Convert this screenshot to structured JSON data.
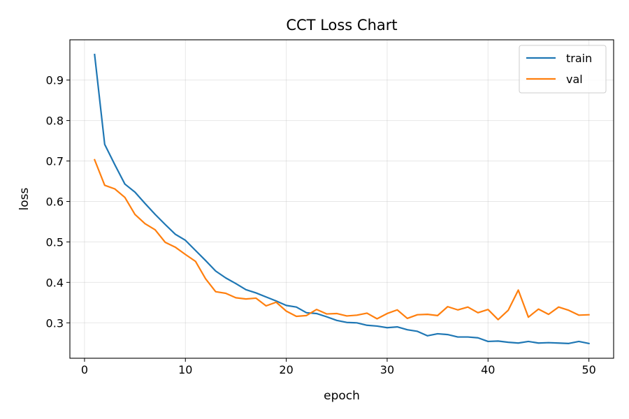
{
  "chart_data": {
    "type": "line",
    "title": "CCT Loss Chart",
    "xlabel": "epoch",
    "ylabel": "loss",
    "xlim": [
      -1.45,
      52.45
    ],
    "ylim": [
      0.2125,
      0.9995
    ],
    "xticks": [
      0,
      10,
      20,
      30,
      40,
      50
    ],
    "yticks": [
      0.3,
      0.4,
      0.5,
      0.6,
      0.7,
      0.8,
      0.9
    ],
    "xtick_labels": [
      "0",
      "10",
      "20",
      "30",
      "40",
      "50"
    ],
    "ytick_labels": [
      "0.3",
      "0.4",
      "0.5",
      "0.6",
      "0.7",
      "0.8",
      "0.9"
    ],
    "grid": true,
    "legend_position": "top-right",
    "x": [
      1,
      2,
      3,
      4,
      5,
      6,
      7,
      8,
      9,
      10,
      11,
      12,
      13,
      14,
      15,
      16,
      17,
      18,
      19,
      20,
      21,
      22,
      23,
      24,
      25,
      26,
      27,
      28,
      29,
      30,
      31,
      32,
      33,
      34,
      35,
      36,
      37,
      38,
      39,
      40,
      41,
      42,
      43,
      44,
      45,
      46,
      47,
      48,
      49,
      50
    ],
    "series": [
      {
        "name": "train",
        "color": "#1f77b4",
        "values": [
          0.963,
          0.741,
          0.691,
          0.643,
          0.623,
          0.595,
          0.568,
          0.543,
          0.519,
          0.504,
          0.479,
          0.454,
          0.428,
          0.411,
          0.397,
          0.382,
          0.374,
          0.364,
          0.354,
          0.343,
          0.339,
          0.325,
          0.323,
          0.315,
          0.306,
          0.301,
          0.3,
          0.294,
          0.292,
          0.288,
          0.29,
          0.283,
          0.279,
          0.268,
          0.273,
          0.271,
          0.265,
          0.265,
          0.263,
          0.254,
          0.255,
          0.252,
          0.25,
          0.254,
          0.25,
          0.251,
          0.25,
          0.249,
          0.254,
          0.249
        ]
      },
      {
        "name": "val",
        "color": "#ff7f0e",
        "values": [
          0.703,
          0.64,
          0.631,
          0.61,
          0.568,
          0.545,
          0.53,
          0.499,
          0.487,
          0.469,
          0.452,
          0.409,
          0.377,
          0.373,
          0.362,
          0.359,
          0.361,
          0.342,
          0.351,
          0.329,
          0.316,
          0.318,
          0.333,
          0.322,
          0.323,
          0.317,
          0.319,
          0.324,
          0.31,
          0.323,
          0.332,
          0.311,
          0.32,
          0.321,
          0.318,
          0.34,
          0.332,
          0.339,
          0.325,
          0.333,
          0.308,
          0.331,
          0.381,
          0.314,
          0.334,
          0.321,
          0.339,
          0.331,
          0.319,
          0.32
        ]
      }
    ]
  }
}
